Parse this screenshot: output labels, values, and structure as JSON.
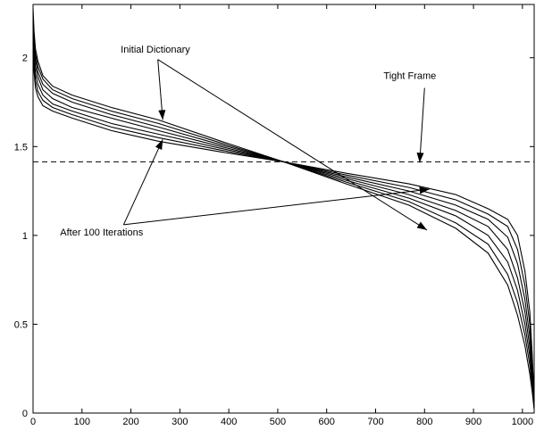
{
  "chart_data": {
    "type": "line",
    "title": "",
    "xlabel": "",
    "ylabel": "",
    "xlim": [
      0,
      1024
    ],
    "ylim": [
      0,
      2.3
    ],
    "grid": false,
    "x_ticks": [
      "0",
      "100",
      "200",
      "300",
      "400",
      "500",
      "600",
      "700",
      "800",
      "900",
      "1000"
    ],
    "y_ticks": [
      "0",
      "0.5",
      "1",
      "1.5",
      "2"
    ],
    "x": [
      0,
      2,
      5,
      10,
      20,
      40,
      80,
      160,
      256,
      384,
      512,
      640,
      768,
      864,
      930,
      970,
      990,
      1005,
      1015,
      1020,
      1024
    ],
    "series": [
      {
        "values": [
          2.28,
          2.15,
          2.05,
          1.98,
          1.9,
          1.84,
          1.79,
          1.72,
          1.65,
          1.53,
          1.414,
          1.29,
          1.17,
          1.04,
          0.9,
          0.72,
          0.55,
          0.38,
          0.22,
          0.12,
          0.02
        ]
      },
      {
        "values": [
          2.24,
          2.12,
          2.02,
          1.95,
          1.88,
          1.82,
          1.77,
          1.7,
          1.63,
          1.52,
          1.414,
          1.3,
          1.19,
          1.07,
          0.95,
          0.78,
          0.62,
          0.44,
          0.27,
          0.15,
          0.03
        ]
      },
      {
        "values": [
          2.2,
          2.08,
          1.99,
          1.92,
          1.85,
          1.8,
          1.75,
          1.68,
          1.61,
          1.51,
          1.414,
          1.31,
          1.21,
          1.11,
          1.0,
          0.85,
          0.69,
          0.5,
          0.32,
          0.18,
          0.04
        ]
      },
      {
        "values": [
          2.16,
          2.04,
          1.95,
          1.89,
          1.82,
          1.77,
          1.72,
          1.66,
          1.59,
          1.5,
          1.414,
          1.32,
          1.23,
          1.14,
          1.05,
          0.92,
          0.76,
          0.57,
          0.37,
          0.21,
          0.05
        ]
      },
      {
        "values": [
          2.12,
          2.0,
          1.91,
          1.85,
          1.79,
          1.74,
          1.7,
          1.63,
          1.57,
          1.49,
          1.414,
          1.33,
          1.25,
          1.17,
          1.09,
          0.99,
          0.84,
          0.64,
          0.43,
          0.25,
          0.06
        ]
      },
      {
        "values": [
          2.08,
          1.96,
          1.87,
          1.81,
          1.76,
          1.72,
          1.68,
          1.61,
          1.55,
          1.48,
          1.414,
          1.34,
          1.27,
          1.2,
          1.12,
          1.05,
          0.92,
          0.72,
          0.5,
          0.29,
          0.07
        ]
      },
      {
        "values": [
          2.04,
          1.92,
          1.83,
          1.78,
          1.73,
          1.7,
          1.66,
          1.59,
          1.53,
          1.47,
          1.414,
          1.35,
          1.29,
          1.23,
          1.15,
          1.09,
          1.0,
          0.8,
          0.57,
          0.33,
          0.08
        ]
      }
    ],
    "reference_line": {
      "y": 1.414,
      "style": "dashed"
    },
    "annotations": [
      {
        "text": "Initial Dictionary",
        "text_at": [
          250,
          2.03
        ],
        "arrows_to": [
          [
            265,
            1.65
          ],
          [
            805,
            1.03
          ]
        ]
      },
      {
        "text": "Tight Frame",
        "text_at": [
          770,
          1.88
        ],
        "arrows_to": [
          [
            790,
            1.41
          ]
        ]
      },
      {
        "text": "After 100 Iterations",
        "text_at": [
          110,
          1.0
        ],
        "arrows_to": [
          [
            265,
            1.54
          ],
          [
            810,
            1.26
          ]
        ]
      }
    ]
  }
}
